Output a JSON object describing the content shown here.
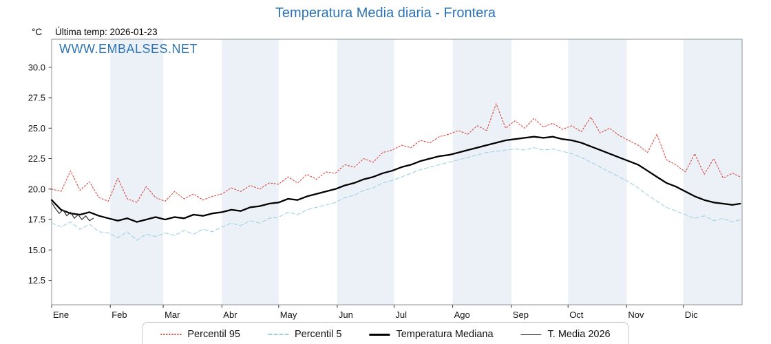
{
  "chart_data": {
    "type": "line",
    "title": "Temperatura Media diaria - Frontera",
    "ylabel": "°C",
    "last_temp_label": "Última temp: 2026-01-23",
    "watermark": "WWW.EMBALSES.NET",
    "x_unit": "day_of_year",
    "xlim": [
      1,
      366
    ],
    "ylim": [
      10.5,
      32.3
    ],
    "yticks": [
      12.5,
      15.0,
      17.5,
      20.0,
      22.5,
      25.0,
      27.5,
      30.0
    ],
    "month_labels": [
      "Ene",
      "Feb",
      "Mar",
      "Abr",
      "May",
      "Jun",
      "Jul",
      "Ago",
      "Sep",
      "Oct",
      "Nov",
      "Dic"
    ],
    "month_start_days": [
      1,
      32,
      60,
      91,
      121,
      152,
      182,
      213,
      244,
      274,
      305,
      335
    ],
    "band_fill": "#ebf1f7",
    "plot_border_color": "#8c929a",
    "tick_color": "#333333",
    "title_color": "#2e74b5",
    "x": [
      1,
      6,
      11,
      16,
      21,
      26,
      31,
      36,
      41,
      46,
      51,
      56,
      61,
      66,
      71,
      76,
      81,
      86,
      91,
      96,
      101,
      106,
      111,
      116,
      121,
      126,
      131,
      136,
      141,
      146,
      151,
      156,
      161,
      166,
      171,
      176,
      181,
      186,
      191,
      196,
      201,
      206,
      211,
      216,
      221,
      226,
      231,
      236,
      241,
      246,
      251,
      256,
      261,
      266,
      271,
      276,
      281,
      286,
      291,
      296,
      301,
      306,
      311,
      316,
      321,
      326,
      331,
      336,
      341,
      346,
      351,
      356,
      361,
      365
    ],
    "series": [
      {
        "name": "Percentil 95",
        "color": "#d8453e",
        "dash": "dotted",
        "width": 1.1,
        "values": [
          20.0,
          19.8,
          21.5,
          19.9,
          20.6,
          19.3,
          19.0,
          20.9,
          19.2,
          18.9,
          20.2,
          19.3,
          19.0,
          19.8,
          19.2,
          19.6,
          19.1,
          19.4,
          19.6,
          20.1,
          19.8,
          20.3,
          20.0,
          20.5,
          20.4,
          21.0,
          20.5,
          21.2,
          20.8,
          21.4,
          21.3,
          22.0,
          21.8,
          22.5,
          22.2,
          23.0,
          23.2,
          23.6,
          23.4,
          24.0,
          23.8,
          24.3,
          24.5,
          24.8,
          24.5,
          25.2,
          24.8,
          27.0,
          25.0,
          25.6,
          25.0,
          25.8,
          25.1,
          25.4,
          24.9,
          25.2,
          24.7,
          25.9,
          24.6,
          25.0,
          24.4,
          24.0,
          23.6,
          23.0,
          24.5,
          22.4,
          22.0,
          21.4,
          22.9,
          21.2,
          22.5,
          20.9,
          21.3,
          21.0
        ]
      },
      {
        "name": "Percentil 5",
        "color": "#9ed0e2",
        "dash": "dashed",
        "width": 1.1,
        "values": [
          17.2,
          16.9,
          17.3,
          16.7,
          17.1,
          16.5,
          16.4,
          16.0,
          16.5,
          15.8,
          16.3,
          16.1,
          16.4,
          16.2,
          16.6,
          16.3,
          16.7,
          16.5,
          16.9,
          17.2,
          17.0,
          17.4,
          17.2,
          17.6,
          17.7,
          18.1,
          17.9,
          18.3,
          18.5,
          18.7,
          18.9,
          19.3,
          19.5,
          19.9,
          20.1,
          20.5,
          20.7,
          21.0,
          21.3,
          21.6,
          21.8,
          22.0,
          22.2,
          22.4,
          22.6,
          22.8,
          23.0,
          23.1,
          23.2,
          23.3,
          23.2,
          23.4,
          23.2,
          23.3,
          23.1,
          22.9,
          22.6,
          22.2,
          21.8,
          21.4,
          21.0,
          20.6,
          20.1,
          19.5,
          19.0,
          18.5,
          18.2,
          17.9,
          17.6,
          17.8,
          17.4,
          17.6,
          17.3,
          17.5
        ]
      },
      {
        "name": "Temperatura Mediana",
        "color": "#000000",
        "dash": "solid",
        "width": 2.3,
        "values": [
          19.1,
          18.3,
          18.0,
          17.9,
          18.1,
          17.8,
          17.6,
          17.4,
          17.6,
          17.3,
          17.5,
          17.7,
          17.5,
          17.7,
          17.6,
          17.9,
          17.8,
          18.0,
          18.1,
          18.3,
          18.2,
          18.5,
          18.6,
          18.8,
          18.9,
          19.2,
          19.1,
          19.4,
          19.6,
          19.8,
          20.0,
          20.3,
          20.5,
          20.8,
          21.0,
          21.3,
          21.5,
          21.8,
          22.0,
          22.3,
          22.5,
          22.7,
          22.8,
          23.0,
          23.2,
          23.4,
          23.6,
          23.8,
          24.0,
          24.1,
          24.2,
          24.3,
          24.2,
          24.3,
          24.1,
          24.0,
          23.8,
          23.5,
          23.2,
          22.9,
          22.6,
          22.3,
          22.0,
          21.5,
          21.0,
          20.5,
          20.2,
          19.8,
          19.4,
          19.1,
          18.9,
          18.8,
          18.7,
          18.8
        ]
      },
      {
        "name": "T. Media 2026",
        "color": "#303030",
        "dash": "solid",
        "width": 1.2,
        "x": [
          1,
          3,
          5,
          7,
          9,
          11,
          13,
          15,
          17,
          19,
          21,
          23
        ],
        "values": [
          18.9,
          18.4,
          18.0,
          18.3,
          17.8,
          18.1,
          17.6,
          17.9,
          17.5,
          17.8,
          17.4,
          17.6
        ]
      }
    ]
  }
}
